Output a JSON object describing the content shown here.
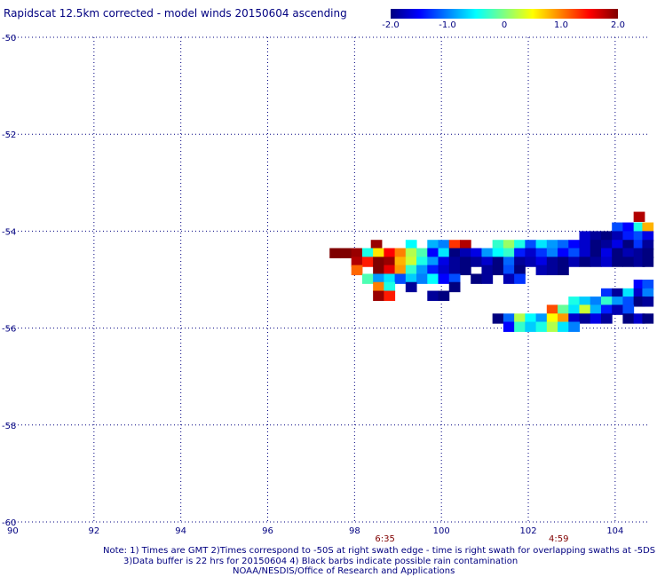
{
  "title": "Rapidscat 12.5km corrected - model winds 20150604 ascending",
  "notes": {
    "line1": "Note: 1) Times are GMT 2)Times correspond to -50S at right swath edge - time is right swath for overlapping swaths at -5DS",
    "line2": "3)Data buffer is 22 hrs for 20150604 4) Black barbs indicate possible rain contamination",
    "line3": "NOAA/NESDIS/Office of Research and Applications"
  },
  "colorbar": {
    "labels": [
      "-2.0",
      "-1.0",
      "0",
      "1.0",
      "2.0"
    ],
    "range": [
      -2.0,
      2.0
    ],
    "stops": [
      "#00007f",
      "#0000ff",
      "#0080ff",
      "#00ffff",
      "#80ff80",
      "#ffff00",
      "#ff8000",
      "#ff0000",
      "#7f0000"
    ]
  },
  "chart_data": {
    "type": "heatmap",
    "title": "Rapidscat 12.5km corrected - model winds 20150604 ascending",
    "xlim": [
      90,
      104.8
    ],
    "ylim": [
      -60,
      -50
    ],
    "x_ticks": [
      90,
      92,
      94,
      96,
      98,
      100,
      102,
      104
    ],
    "x_tick_labels": [
      "90",
      "92",
      "94",
      "96",
      "98",
      "100",
      "102",
      "104"
    ],
    "y_ticks": [
      -50,
      -52,
      -54,
      -56,
      -58,
      -60
    ],
    "y_tick_labels": [
      "-50",
      "-52",
      "-54",
      "-56",
      "-58",
      "-60"
    ],
    "grid": true,
    "time_labels": [
      {
        "x": 98.7,
        "text": "6:35"
      },
      {
        "x": 102.7,
        "text": "4:59"
      }
    ],
    "cell_size_deg": [
      0.25,
      0.2
    ],
    "cells": [
      [
        104.55,
        -53.7,
        1.8
      ],
      [
        104.05,
        -53.92,
        -1.2
      ],
      [
        104.3,
        -53.92,
        -1.5
      ],
      [
        104.55,
        -53.92,
        -0.4
      ],
      [
        104.75,
        -53.92,
        0.8
      ],
      [
        103.3,
        -54.1,
        -1.7
      ],
      [
        103.55,
        -54.1,
        -1.9
      ],
      [
        103.8,
        -54.1,
        -2.0
      ],
      [
        104.05,
        -54.1,
        -1.8
      ],
      [
        104.3,
        -54.1,
        -1.4
      ],
      [
        104.55,
        -54.1,
        -1.2
      ],
      [
        104.75,
        -54.1,
        -1.6
      ],
      [
        98.5,
        -54.28,
        1.9
      ],
      [
        99.3,
        -54.28,
        -0.5
      ],
      [
        99.8,
        -54.28,
        -0.8
      ],
      [
        100.05,
        -54.28,
        -1.0
      ],
      [
        100.3,
        -54.28,
        1.3
      ],
      [
        100.55,
        -54.28,
        1.8
      ],
      [
        101.3,
        -54.28,
        -0.3
      ],
      [
        101.55,
        -54.28,
        0.1
      ],
      [
        101.8,
        -54.28,
        -0.4
      ],
      [
        102.05,
        -54.28,
        -1.2
      ],
      [
        102.3,
        -54.28,
        -0.6
      ],
      [
        102.55,
        -54.28,
        -0.9
      ],
      [
        102.8,
        -54.28,
        -1.1
      ],
      [
        103.05,
        -54.28,
        -1.5
      ],
      [
        103.3,
        -54.28,
        -1.7
      ],
      [
        103.55,
        -54.28,
        -2.0
      ],
      [
        103.8,
        -54.28,
        -1.9
      ],
      [
        104.05,
        -54.28,
        -1.6
      ],
      [
        104.3,
        -54.28,
        -2.0
      ],
      [
        104.55,
        -54.28,
        -1.3
      ],
      [
        104.75,
        -54.28,
        -1.9
      ],
      [
        97.55,
        -54.45,
        2.0
      ],
      [
        97.8,
        -54.45,
        2.0
      ],
      [
        98.05,
        -54.45,
        1.9
      ],
      [
        98.3,
        -54.45,
        -0.4
      ],
      [
        98.55,
        -54.45,
        0.6
      ],
      [
        98.8,
        -54.45,
        1.5
      ],
      [
        99.05,
        -54.45,
        1.0
      ],
      [
        99.3,
        -54.45,
        0.2
      ],
      [
        99.55,
        -54.45,
        -0.2
      ],
      [
        99.8,
        -54.45,
        -1.5
      ],
      [
        100.05,
        -54.45,
        -0.6
      ],
      [
        100.3,
        -54.45,
        -2.0
      ],
      [
        100.55,
        -54.45,
        -1.8
      ],
      [
        100.8,
        -54.45,
        -1.6
      ],
      [
        101.05,
        -54.45,
        -0.9
      ],
      [
        101.3,
        -54.45,
        -0.5
      ],
      [
        101.55,
        -54.45,
        -0.3
      ],
      [
        101.8,
        -54.45,
        -1.4
      ],
      [
        102.05,
        -54.45,
        -1.7
      ],
      [
        102.3,
        -54.45,
        -1.3
      ],
      [
        102.55,
        -54.45,
        -1.0
      ],
      [
        102.8,
        -54.45,
        -1.5
      ],
      [
        103.05,
        -54.45,
        -1.2
      ],
      [
        103.3,
        -54.45,
        -1.7
      ],
      [
        103.55,
        -54.45,
        -2.0
      ],
      [
        103.8,
        -54.45,
        -1.6
      ],
      [
        104.05,
        -54.45,
        -2.0
      ],
      [
        104.3,
        -54.45,
        -1.8
      ],
      [
        104.55,
        -54.45,
        -1.9
      ],
      [
        104.75,
        -54.45,
        -2.0
      ],
      [
        98.05,
        -54.63,
        1.8
      ],
      [
        98.3,
        -54.63,
        1.4
      ],
      [
        98.55,
        -54.63,
        2.0
      ],
      [
        98.8,
        -54.63,
        1.9
      ],
      [
        99.05,
        -54.63,
        0.8
      ],
      [
        99.3,
        -54.63,
        0.3
      ],
      [
        99.55,
        -54.63,
        -0.4
      ],
      [
        99.8,
        -54.63,
        -0.9
      ],
      [
        100.05,
        -54.63,
        -1.6
      ],
      [
        100.3,
        -54.63,
        -1.9
      ],
      [
        100.55,
        -54.63,
        -2.0
      ],
      [
        100.8,
        -54.63,
        -1.9
      ],
      [
        101.05,
        -54.63,
        -1.7
      ],
      [
        101.3,
        -54.63,
        -2.0
      ],
      [
        101.55,
        -54.63,
        -1.1
      ],
      [
        101.8,
        -54.63,
        -1.9
      ],
      [
        102.05,
        -54.63,
        -1.8
      ],
      [
        102.3,
        -54.63,
        -1.6
      ],
      [
        102.55,
        -54.63,
        -1.9
      ],
      [
        102.8,
        -54.63,
        -2.0
      ],
      [
        103.05,
        -54.63,
        -1.8
      ],
      [
        103.3,
        -54.63,
        -2.0
      ],
      [
        103.55,
        -54.63,
        -1.9
      ],
      [
        103.8,
        -54.63,
        -1.7
      ],
      [
        104.05,
        -54.63,
        -2.0
      ],
      [
        104.3,
        -54.63,
        -2.0
      ],
      [
        104.55,
        -54.63,
        -1.9
      ],
      [
        104.75,
        -54.63,
        -2.0
      ],
      [
        98.05,
        -54.8,
        1.1
      ],
      [
        98.55,
        -54.8,
        2.0
      ],
      [
        98.8,
        -54.8,
        1.6
      ],
      [
        99.05,
        -54.8,
        0.9
      ],
      [
        99.3,
        -54.8,
        -0.3
      ],
      [
        99.55,
        -54.8,
        -0.9
      ],
      [
        99.8,
        -54.8,
        -1.4
      ],
      [
        100.05,
        -54.8,
        -1.7
      ],
      [
        100.3,
        -54.8,
        -1.9
      ],
      [
        100.55,
        -54.8,
        -2.0
      ],
      [
        101.05,
        -54.8,
        -1.9
      ],
      [
        101.3,
        -54.8,
        -2.0
      ],
      [
        101.55,
        -54.8,
        -1.2
      ],
      [
        101.8,
        -54.8,
        -2.0
      ],
      [
        102.3,
        -54.8,
        -1.8
      ],
      [
        102.55,
        -54.8,
        -1.9
      ],
      [
        102.8,
        -54.8,
        -2.0
      ],
      [
        98.3,
        -54.98,
        -0.2
      ],
      [
        98.55,
        -54.98,
        -0.9
      ],
      [
        98.8,
        -54.98,
        -0.6
      ],
      [
        99.05,
        -54.98,
        -1.2
      ],
      [
        99.3,
        -54.98,
        -0.7
      ],
      [
        99.55,
        -54.98,
        -1.0
      ],
      [
        99.8,
        -54.98,
        -0.5
      ],
      [
        100.05,
        -54.98,
        -1.5
      ],
      [
        100.3,
        -54.98,
        -1.2
      ],
      [
        100.8,
        -54.98,
        -2.0
      ],
      [
        101.05,
        -54.98,
        -1.9
      ],
      [
        101.55,
        -54.98,
        -1.8
      ],
      [
        101.8,
        -54.98,
        -1.3
      ],
      [
        98.55,
        -55.15,
        1.0
      ],
      [
        98.8,
        -55.15,
        -0.4
      ],
      [
        99.3,
        -55.15,
        -1.9
      ],
      [
        100.3,
        -55.15,
        -2.0
      ],
      [
        98.55,
        -55.33,
        1.9
      ],
      [
        98.8,
        -55.33,
        1.4
      ],
      [
        99.8,
        -55.33,
        -1.9
      ],
      [
        100.05,
        -55.33,
        -2.0
      ],
      [
        104.55,
        -55.1,
        -1.5
      ],
      [
        104.75,
        -55.1,
        -1.2
      ],
      [
        103.8,
        -55.28,
        -1.3
      ],
      [
        104.05,
        -55.28,
        -1.9
      ],
      [
        104.3,
        -55.28,
        -0.6
      ],
      [
        104.55,
        -55.28,
        -1.7
      ],
      [
        104.75,
        -55.28,
        -1.0
      ],
      [
        103.05,
        -55.45,
        -0.4
      ],
      [
        103.3,
        -55.45,
        -0.7
      ],
      [
        103.55,
        -55.45,
        -1.0
      ],
      [
        103.8,
        -55.45,
        -0.3
      ],
      [
        104.05,
        -55.45,
        -0.9
      ],
      [
        104.3,
        -55.45,
        -1.2
      ],
      [
        104.55,
        -55.45,
        -2.0
      ],
      [
        104.75,
        -55.45,
        -1.9
      ],
      [
        102.55,
        -55.62,
        1.2
      ],
      [
        102.8,
        -55.62,
        -0.1
      ],
      [
        103.05,
        -55.62,
        -0.6
      ],
      [
        103.3,
        -55.62,
        0.3
      ],
      [
        103.55,
        -55.62,
        -0.8
      ],
      [
        103.8,
        -55.62,
        -1.4
      ],
      [
        104.05,
        -55.62,
        -1.8
      ],
      [
        104.3,
        -55.62,
        -1.2
      ],
      [
        101.3,
        -55.8,
        -2.0
      ],
      [
        101.55,
        -55.8,
        -1.1
      ],
      [
        101.8,
        -55.8,
        0.2
      ],
      [
        102.05,
        -55.8,
        -0.5
      ],
      [
        102.3,
        -55.8,
        -0.9
      ],
      [
        102.55,
        -55.8,
        0.5
      ],
      [
        102.8,
        -55.8,
        0.9
      ],
      [
        103.05,
        -55.8,
        -1.7
      ],
      [
        103.3,
        -55.8,
        -1.9
      ],
      [
        103.55,
        -55.8,
        -1.6
      ],
      [
        103.8,
        -55.8,
        -1.9
      ],
      [
        104.3,
        -55.8,
        -2.0
      ],
      [
        104.55,
        -55.8,
        -1.7
      ],
      [
        104.75,
        -55.8,
        -2.0
      ],
      [
        101.55,
        -55.97,
        -1.5
      ],
      [
        101.8,
        -55.97,
        -0.3
      ],
      [
        102.05,
        -55.97,
        -0.7
      ],
      [
        102.3,
        -55.97,
        -0.4
      ],
      [
        102.55,
        -55.97,
        0.2
      ],
      [
        102.8,
        -55.97,
        -0.6
      ],
      [
        103.05,
        -55.97,
        -1.0
      ]
    ]
  }
}
